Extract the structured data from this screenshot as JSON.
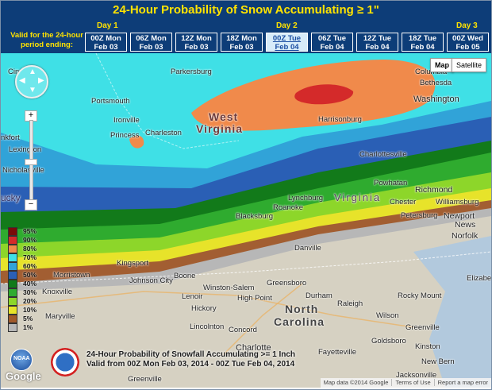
{
  "header": {
    "title": "24-Hour Probability of Snow Accumulating ≥ 1\"",
    "days": [
      "Day 1",
      "Day 2",
      "Day 3"
    ],
    "valid_label": "Valid for the 24-hour period ending:",
    "tabs": [
      {
        "time": "00Z Mon",
        "date": "Feb 03",
        "active": false
      },
      {
        "time": "06Z Mon",
        "date": "Feb 03",
        "active": false
      },
      {
        "time": "12Z Mon",
        "date": "Feb 03",
        "active": false
      },
      {
        "time": "18Z Mon",
        "date": "Feb 03",
        "active": false
      },
      {
        "time": "00Z Tue",
        "date": "Feb 04",
        "active": true
      },
      {
        "time": "06Z Tue",
        "date": "Feb 04",
        "active": false
      },
      {
        "time": "12Z Tue",
        "date": "Feb 04",
        "active": false
      },
      {
        "time": "18Z Tue",
        "date": "Feb 04",
        "active": false
      },
      {
        "time": "00Z Wed",
        "date": "Feb 05",
        "active": false
      }
    ]
  },
  "map": {
    "type_buttons": {
      "map": "Map",
      "satellite": "Satellite"
    },
    "places": {
      "columbia": "Columbia",
      "bethesda": "Bethesda",
      "washington": "Washington",
      "parkersburg": "Parkersburg",
      "portsmouth": "Portsmouth",
      "ironville": "Ironville",
      "charleston": "Charleston",
      "princess": "Princess",
      "lexington": "Lexington",
      "nicholasville": "Nicholasville",
      "frankfort": "nkfort",
      "cin": "Cin",
      "harrisonburg": "Harrisonburg",
      "charlottesville": "Charlottesville",
      "powhatan": "Powhatan",
      "richmond": "Richmond",
      "lynchburg": "Lynchburg",
      "roanoke": "Roanoke",
      "blacksburg": "Blacksburg",
      "chester": "Chester",
      "williamsburg": "Williamsburg",
      "petersburg": "Petersburg",
      "newport": "Newport",
      "news": "News",
      "norfolk": "Norfolk",
      "danville": "Danville",
      "kingsport": "Kingsport",
      "morristown": "Morristown",
      "boone": "Boone",
      "johnson_city": "Johnson City",
      "knoxville": "Knoxville",
      "maryville": "Maryville",
      "winston_salem": "Winston-Salem",
      "greensboro": "Greensboro",
      "lenoir": "Lenoir",
      "high_point": "High Point",
      "durham": "Durham",
      "rocky_mount": "Rocky Mount",
      "elizabeth_city": "Elizabeth City",
      "hickory": "Hickory",
      "raleigh": "Raleigh",
      "wilson": "Wilson",
      "greenville": "Greenville",
      "lincolnton": "Lincolnton",
      "concord": "Concord",
      "charlotte": "Charlotte",
      "fayetteville": "Fayetteville",
      "goldsboro": "Goldsboro",
      "kinston": "Kinston",
      "new_bern": "New Bern",
      "jacksonville": "Jacksonville",
      "greenville_sc": "Greenville",
      "west": "West",
      "virginia_wv": "Virginia",
      "virginia": "Virginia",
      "north": "North",
      "carolina": "Carolina",
      "ucky": "ucky"
    },
    "caption_line1": "24-Hour Probability of Snowfall Accumulating >= 1 Inch",
    "caption_line2": "Valid from 00Z Mon Feb 03, 2014 - 00Z Tue Feb 04, 2014",
    "footer": {
      "map_data": "Map data ©2014 Google",
      "terms": "Terms of Use",
      "report": "Report a map error"
    },
    "google_logo": "Google",
    "noaa_logo": "NOAA"
  },
  "legend": [
    {
      "label": "95%",
      "color": "#7a0a0a"
    },
    {
      "label": "90%",
      "color": "#d42a2a"
    },
    {
      "label": "80%",
      "color": "#f08a4b"
    },
    {
      "label": "70%",
      "color": "#3fe0e6"
    },
    {
      "label": "60%",
      "color": "#31a3d8"
    },
    {
      "label": "50%",
      "color": "#2a5fb5"
    },
    {
      "label": "40%",
      "color": "#127a1a"
    },
    {
      "label": "30%",
      "color": "#2fab2f"
    },
    {
      "label": "20%",
      "color": "#8dd62a"
    },
    {
      "label": "10%",
      "color": "#e7e32a"
    },
    {
      "label": "5%",
      "color": "#a0592a"
    },
    {
      "label": "1%",
      "color": "#b7b7b7"
    }
  ]
}
